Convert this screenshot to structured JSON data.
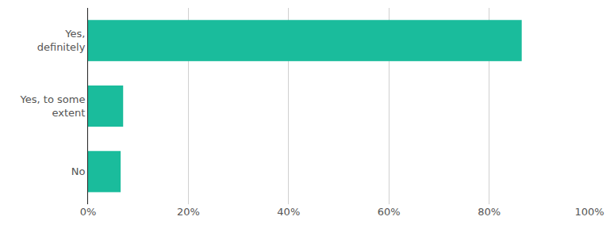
{
  "chart_data": {
    "type": "bar",
    "orientation": "horizontal",
    "categories": [
      "Yes, definitely",
      "Yes, to some extent",
      "No"
    ],
    "values": [
      86.5,
      7,
      6.5
    ],
    "color": "#1abc9c",
    "xlim": [
      0,
      100
    ],
    "xticks": [
      {
        "value": 0,
        "label": "0%"
      },
      {
        "value": 20,
        "label": "20%"
      },
      {
        "value": 40,
        "label": "40%"
      },
      {
        "value": 60,
        "label": "60%"
      },
      {
        "value": 80,
        "label": "80%"
      },
      {
        "value": 100,
        "label": "100%"
      }
    ],
    "grid": true
  }
}
